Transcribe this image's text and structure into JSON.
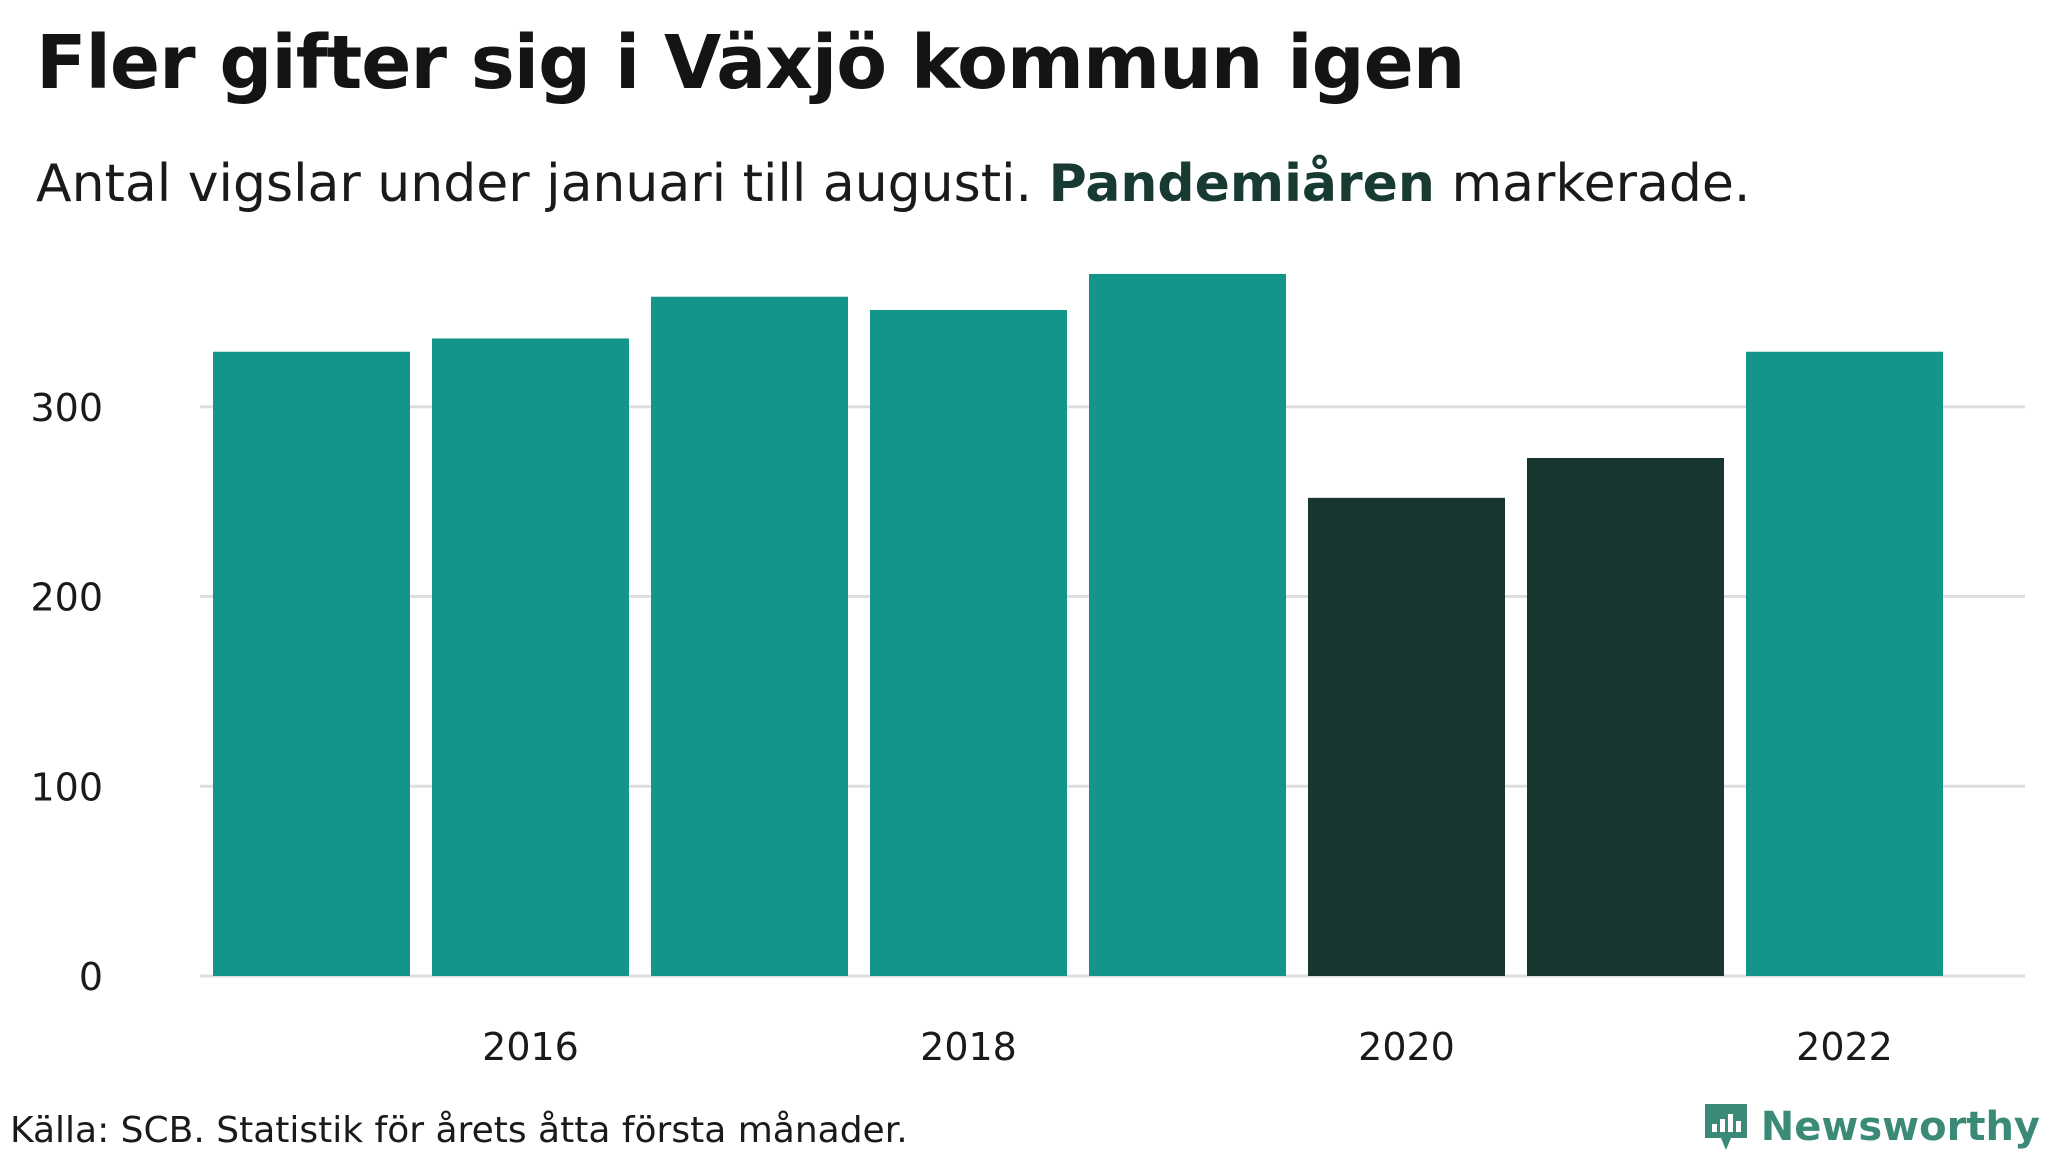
{
  "title": "Fler gifter sig i Växjö kommun igen",
  "subtitle": {
    "before": "Antal vigslar under januari till augusti. ",
    "highlight": "Pandemiåren",
    "after": " markerade."
  },
  "source": "Källa: SCB. Statistik för årets åtta första månader.",
  "brand": {
    "name": "Newsworthy",
    "logo_icon": "newsworthy-bar-chart-logo-icon"
  },
  "colors": {
    "normal": "#14958a",
    "pandemic": "#183630",
    "grid": "#dedede",
    "brand": "#3b8a78"
  },
  "chart_data": {
    "type": "bar",
    "categories": [
      "2015",
      "2016",
      "2017",
      "2018",
      "2019",
      "2020",
      "2021",
      "2022"
    ],
    "values": [
      329,
      336,
      358,
      351,
      370,
      252,
      273,
      329
    ],
    "highlighted": [
      "2020",
      "2021"
    ],
    "highlight_label": "Pandemiåren",
    "x_tick_labels": [
      "2016",
      "2018",
      "2020",
      "2022"
    ],
    "y_ticks": [
      0,
      100,
      200,
      300
    ],
    "ylim": [
      0,
      390
    ],
    "grid": true,
    "legend": "none"
  }
}
